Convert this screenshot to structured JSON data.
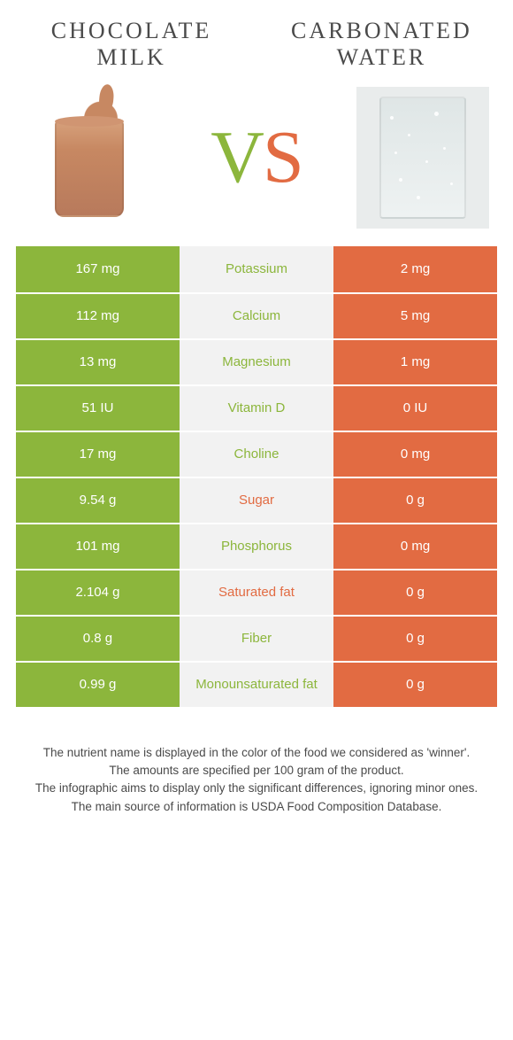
{
  "colors": {
    "green": "#8cb63c",
    "orange": "#e26b42",
    "midBg": "#f2f2f2",
    "white": "#ffffff",
    "text": "#4a4a4a"
  },
  "leftTitle": "CHOCOLATE MILK",
  "rightTitle": "CARBONATED WATER",
  "vs": {
    "v": "V",
    "s": "S"
  },
  "rows": [
    {
      "left": "167 mg",
      "label": "Potassium",
      "right": "2 mg",
      "winner": "green"
    },
    {
      "left": "112 mg",
      "label": "Calcium",
      "right": "5 mg",
      "winner": "green"
    },
    {
      "left": "13 mg",
      "label": "Magnesium",
      "right": "1 mg",
      "winner": "green"
    },
    {
      "left": "51 IU",
      "label": "Vitamin D",
      "right": "0 IU",
      "winner": "green"
    },
    {
      "left": "17 mg",
      "label": "Choline",
      "right": "0 mg",
      "winner": "green"
    },
    {
      "left": "9.54 g",
      "label": "Sugar",
      "right": "0 g",
      "winner": "orange"
    },
    {
      "left": "101 mg",
      "label": "Phosphorus",
      "right": "0 mg",
      "winner": "green"
    },
    {
      "left": "2.104 g",
      "label": "Saturated fat",
      "right": "0 g",
      "winner": "orange"
    },
    {
      "left": "0.8 g",
      "label": "Fiber",
      "right": "0 g",
      "winner": "green"
    },
    {
      "left": "0.99 g",
      "label": "Monounsaturated fat",
      "right": "0 g",
      "winner": "green"
    }
  ],
  "footer": {
    "l1": "The nutrient name is displayed in the color of the food we considered as 'winner'.",
    "l2": "The amounts are specified per 100 gram of the product.",
    "l3": "The infographic aims to display only the significant differences, ignoring minor ones.",
    "l4": "The main source of information is USDA Food Composition Database."
  }
}
